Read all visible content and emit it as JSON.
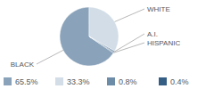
{
  "chart_data": {
    "type": "pie",
    "categories": [
      "BLACK",
      "WHITE",
      "A.I.",
      "HISPANIC"
    ],
    "values": [
      65.5,
      33.3,
      0.8,
      0.4
    ],
    "value_labels": [
      "65.5%",
      "33.3%",
      "0.8%",
      "0.4%"
    ],
    "colors": [
      "#8aa3ba",
      "#d3dde7",
      "#6c8ca8",
      "#355e85"
    ],
    "legend": "bottom"
  }
}
